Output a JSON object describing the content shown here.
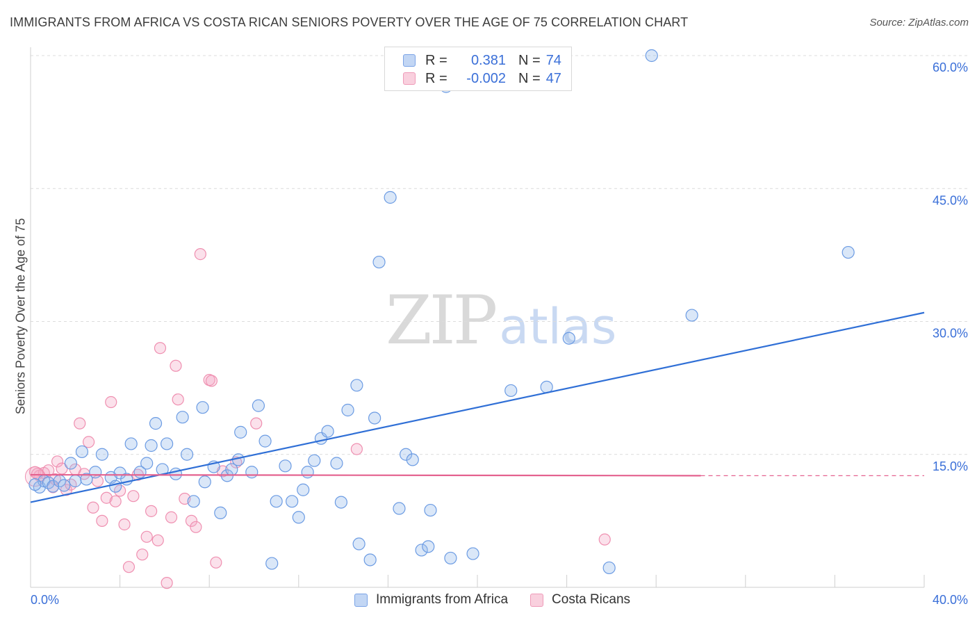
{
  "title": "IMMIGRANTS FROM AFRICA VS COSTA RICAN SENIORS POVERTY OVER THE AGE OF 75 CORRELATION CHART",
  "source": "Source: ZipAtlas.com",
  "watermark": {
    "zip": "ZIP",
    "atlas": "atlas"
  },
  "legend": {
    "rows": [
      {
        "r_label": "R =",
        "r_value": "0.381",
        "n_label": "N =",
        "n_value": "74"
      },
      {
        "r_label": "R =",
        "r_value": "-0.002",
        "n_label": "N =",
        "n_value": "47"
      }
    ]
  },
  "chart_data": {
    "type": "scatter",
    "title": "IMMIGRANTS FROM AFRICA VS COSTA RICAN SENIORS POVERTY OVER THE AGE OF 75 CORRELATION CHART",
    "xlabel": "",
    "ylabel": "Seniors Poverty Over the Age of 75",
    "xlim": [
      0,
      40
    ],
    "ylim": [
      0,
      60
    ],
    "x_tick_labels": [
      "0.0%",
      "40.0%"
    ],
    "y_tick_labels": [
      "15.0%",
      "30.0%",
      "45.0%",
      "60.0%"
    ],
    "y_ticks": [
      15,
      30,
      45,
      60
    ],
    "grid": "horizontal dashed",
    "legend_position": "bottom",
    "colors": {
      "africa": "#6b9be3",
      "costa": "#ef8fb0",
      "africa_line": "#2f6fd6",
      "costa_line": "#e4628f"
    },
    "series": [
      {
        "name": "Immigrants from Africa",
        "color": "#6b9be3",
        "trend": {
          "x": [
            0,
            40
          ],
          "y": [
            9.6,
            31.0
          ]
        },
        "points": [
          [
            0.4,
            11.3
          ],
          [
            0.6,
            12.0
          ],
          [
            0.8,
            11.8
          ],
          [
            1.0,
            11.4
          ],
          [
            1.3,
            12.0
          ],
          [
            1.5,
            11.5
          ],
          [
            1.8,
            14.0
          ],
          [
            2.0,
            12.0
          ],
          [
            2.3,
            15.3
          ],
          [
            2.5,
            12.2
          ],
          [
            2.9,
            13.0
          ],
          [
            3.2,
            15.0
          ],
          [
            3.6,
            12.4
          ],
          [
            3.8,
            11.4
          ],
          [
            4.0,
            12.9
          ],
          [
            4.3,
            12.2
          ],
          [
            4.5,
            16.2
          ],
          [
            4.9,
            13.0
          ],
          [
            5.2,
            14.0
          ],
          [
            5.4,
            16.0
          ],
          [
            5.6,
            18.5
          ],
          [
            5.9,
            13.3
          ],
          [
            6.1,
            16.2
          ],
          [
            6.5,
            12.8
          ],
          [
            6.8,
            19.2
          ],
          [
            7.0,
            15.0
          ],
          [
            7.3,
            9.7
          ],
          [
            7.7,
            20.3
          ],
          [
            7.8,
            11.9
          ],
          [
            8.2,
            13.6
          ],
          [
            8.5,
            8.4
          ],
          [
            8.8,
            12.6
          ],
          [
            9.0,
            13.3
          ],
          [
            9.3,
            14.4
          ],
          [
            9.4,
            17.5
          ],
          [
            9.9,
            13.0
          ],
          [
            10.2,
            20.5
          ],
          [
            10.5,
            16.5
          ],
          [
            10.8,
            2.7
          ],
          [
            11.0,
            9.7
          ],
          [
            11.4,
            13.7
          ],
          [
            11.7,
            9.7
          ],
          [
            12.0,
            7.9
          ],
          [
            12.2,
            11.0
          ],
          [
            12.4,
            13.0
          ],
          [
            12.7,
            14.3
          ],
          [
            13.0,
            16.8
          ],
          [
            13.3,
            17.6
          ],
          [
            13.7,
            14.0
          ],
          [
            13.9,
            9.6
          ],
          [
            14.2,
            20.0
          ],
          [
            14.6,
            22.8
          ],
          [
            14.7,
            4.9
          ],
          [
            15.2,
            3.1
          ],
          [
            15.4,
            19.1
          ],
          [
            15.6,
            36.7
          ],
          [
            16.1,
            44.0
          ],
          [
            16.5,
            8.9
          ],
          [
            16.8,
            15.0
          ],
          [
            17.1,
            14.4
          ],
          [
            17.5,
            4.2
          ],
          [
            17.8,
            4.6
          ],
          [
            17.9,
            8.7
          ],
          [
            18.6,
            56.5
          ],
          [
            18.8,
            3.3
          ],
          [
            19.8,
            3.8
          ],
          [
            21.5,
            22.2
          ],
          [
            23.1,
            22.6
          ],
          [
            24.1,
            28.1
          ],
          [
            25.9,
            2.2
          ],
          [
            27.8,
            60.0
          ],
          [
            29.6,
            30.7
          ],
          [
            36.6,
            37.8
          ],
          [
            0.2,
            11.6
          ]
        ]
      },
      {
        "name": "Costa Ricans",
        "color": "#ef8fb0",
        "trend": {
          "x": [
            0,
            30
          ],
          "y": [
            12.7,
            12.6
          ]
        },
        "trend_dashed_extension": {
          "x": [
            30,
            40
          ],
          "y": [
            12.6,
            12.6
          ]
        },
        "points": [
          [
            0.2,
            13.0
          ],
          [
            0.4,
            12.6
          ],
          [
            0.6,
            12.9
          ],
          [
            0.8,
            13.2
          ],
          [
            1.0,
            11.3
          ],
          [
            1.2,
            14.2
          ],
          [
            1.4,
            13.4
          ],
          [
            1.6,
            11.0
          ],
          [
            1.8,
            11.6
          ],
          [
            2.0,
            13.3
          ],
          [
            2.2,
            18.5
          ],
          [
            2.4,
            12.8
          ],
          [
            2.6,
            16.4
          ],
          [
            2.8,
            9.0
          ],
          [
            3.0,
            12.0
          ],
          [
            3.2,
            7.5
          ],
          [
            3.4,
            10.1
          ],
          [
            3.6,
            20.9
          ],
          [
            3.8,
            9.7
          ],
          [
            4.0,
            10.9
          ],
          [
            4.2,
            7.1
          ],
          [
            4.4,
            2.3
          ],
          [
            4.6,
            10.3
          ],
          [
            4.8,
            12.7
          ],
          [
            5.0,
            3.7
          ],
          [
            5.2,
            5.7
          ],
          [
            5.4,
            8.6
          ],
          [
            5.7,
            5.3
          ],
          [
            5.8,
            27.0
          ],
          [
            6.1,
            0.5
          ],
          [
            6.3,
            7.9
          ],
          [
            6.5,
            25.0
          ],
          [
            6.6,
            21.2
          ],
          [
            6.9,
            10.0
          ],
          [
            7.2,
            7.5
          ],
          [
            7.4,
            6.8
          ],
          [
            7.6,
            37.6
          ],
          [
            8.0,
            23.4
          ],
          [
            8.1,
            23.3
          ],
          [
            8.3,
            2.8
          ],
          [
            8.6,
            13.1
          ],
          [
            9.2,
            14.1
          ],
          [
            10.1,
            18.5
          ],
          [
            14.6,
            15.6
          ],
          [
            25.7,
            5.4
          ],
          [
            1.1,
            12.2
          ],
          [
            0.3,
            12.8
          ]
        ]
      }
    ]
  },
  "bottom_legend": [
    {
      "label": "Immigrants from Africa"
    },
    {
      "label": "Costa Ricans"
    }
  ]
}
